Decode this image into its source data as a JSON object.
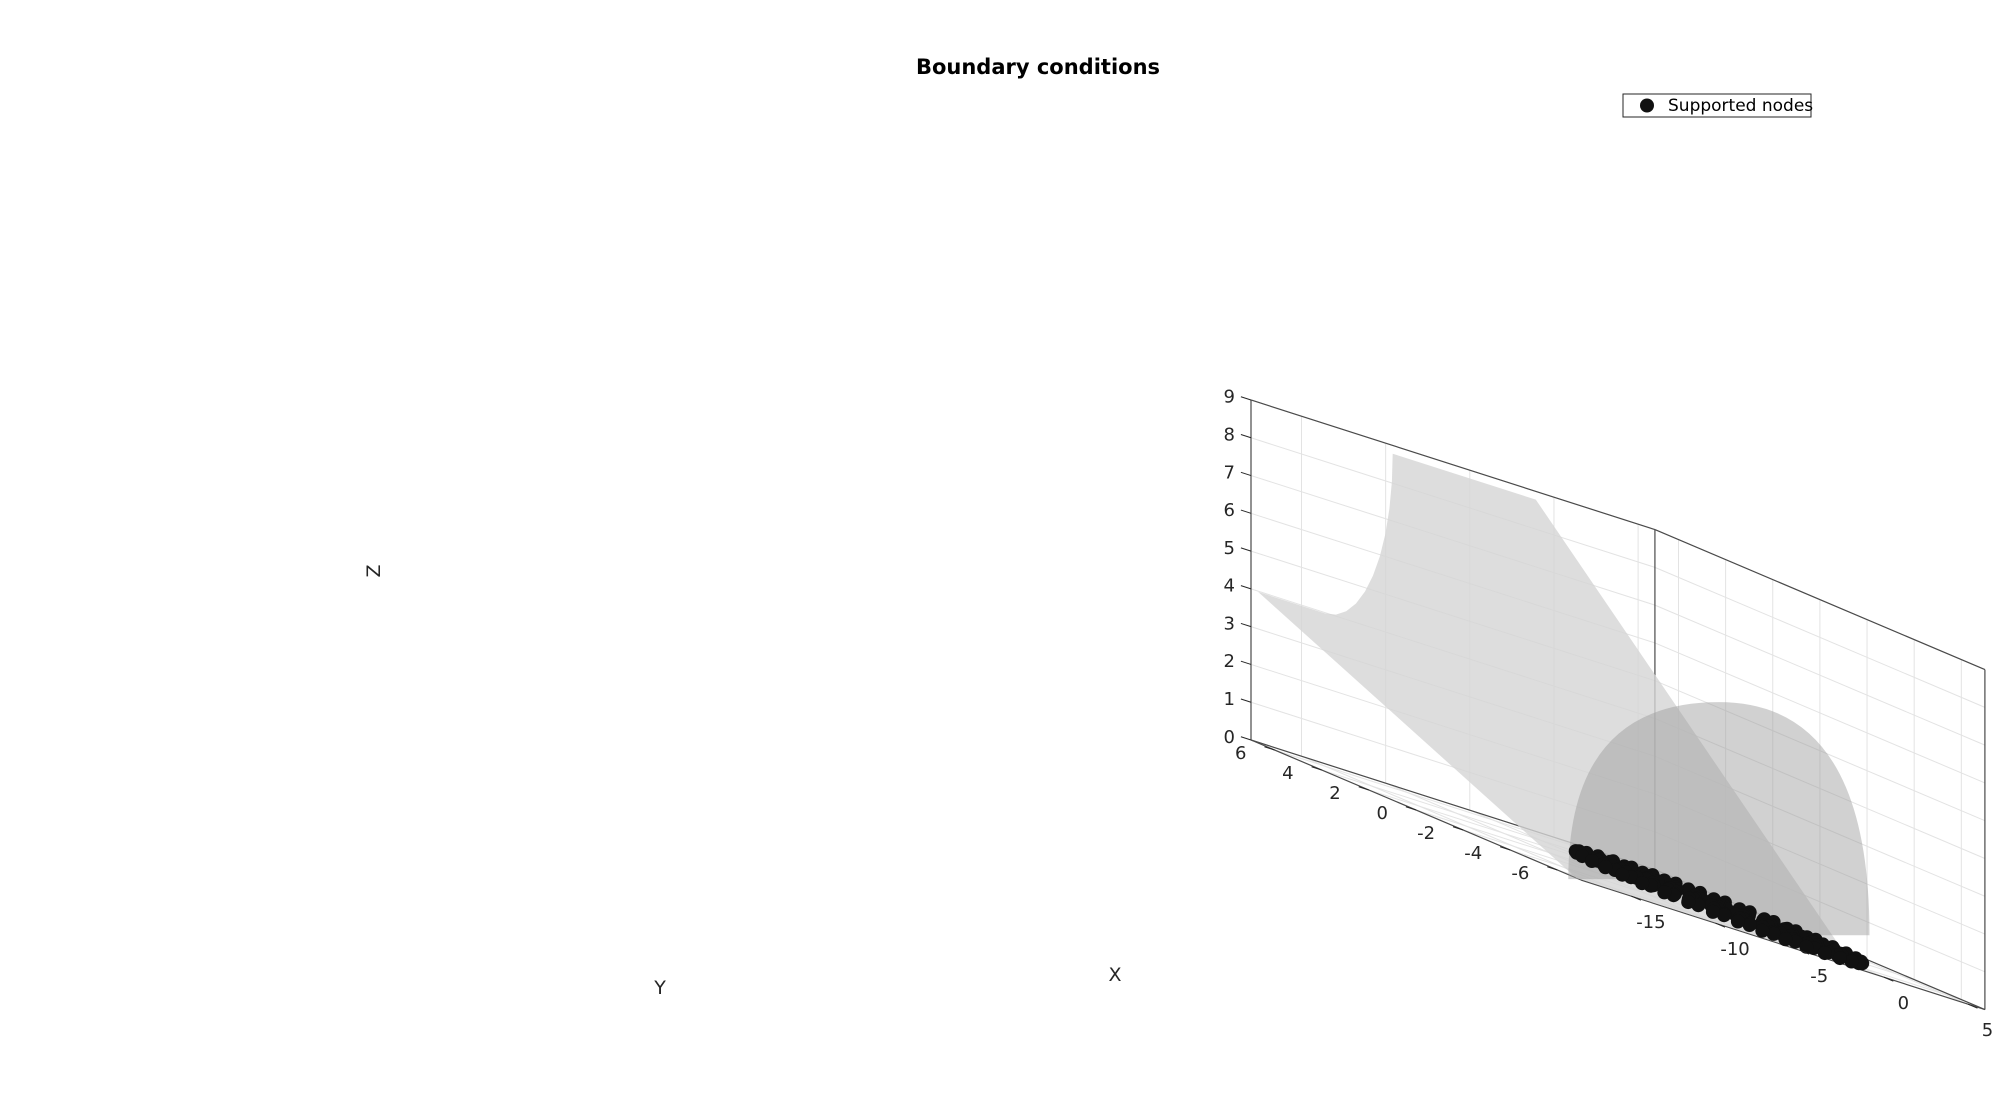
{
  "chart_data": {
    "type": "scatter",
    "projection": "3d",
    "title": "Boundary conditions",
    "xlabel": "X",
    "ylabel": "Y",
    "zlabel": "Z",
    "xlim": [
      -18,
      6
    ],
    "ylim": [
      -7,
      7
    ],
    "zlim": [
      0,
      9
    ],
    "xticks": [
      "-15",
      "-10",
      "-5",
      "0",
      "5"
    ],
    "yticks": [
      "-6",
      "-4",
      "-2",
      "0",
      "2",
      "4",
      "6"
    ],
    "zticks": [
      "0",
      "1",
      "2",
      "3",
      "4",
      "5",
      "6",
      "7",
      "8",
      "9"
    ],
    "grid": true,
    "legend": {
      "location": "top-right",
      "entries": [
        "Supported nodes"
      ]
    },
    "series": [
      {
        "name": "Supported nodes",
        "marker": "filled-circle",
        "color": "#111111",
        "description": "nodes on the base (z = 0) of the hemisphere, center (0, 0, 0), radius 5.2"
      }
    ],
    "surfaces": [
      {
        "kind": "hemisphere",
        "center": [
          0,
          0,
          0
        ],
        "radius": 5.2,
        "color": "#9a9a9a",
        "alpha": 0.45
      },
      {
        "kind": "plate",
        "color": "#d4d4d4",
        "alpha": 0.8
      }
    ]
  },
  "colors": {
    "background": "#ffffff",
    "axis": "#262626",
    "grid": "#e3e3e3",
    "marker": "#111111"
  }
}
